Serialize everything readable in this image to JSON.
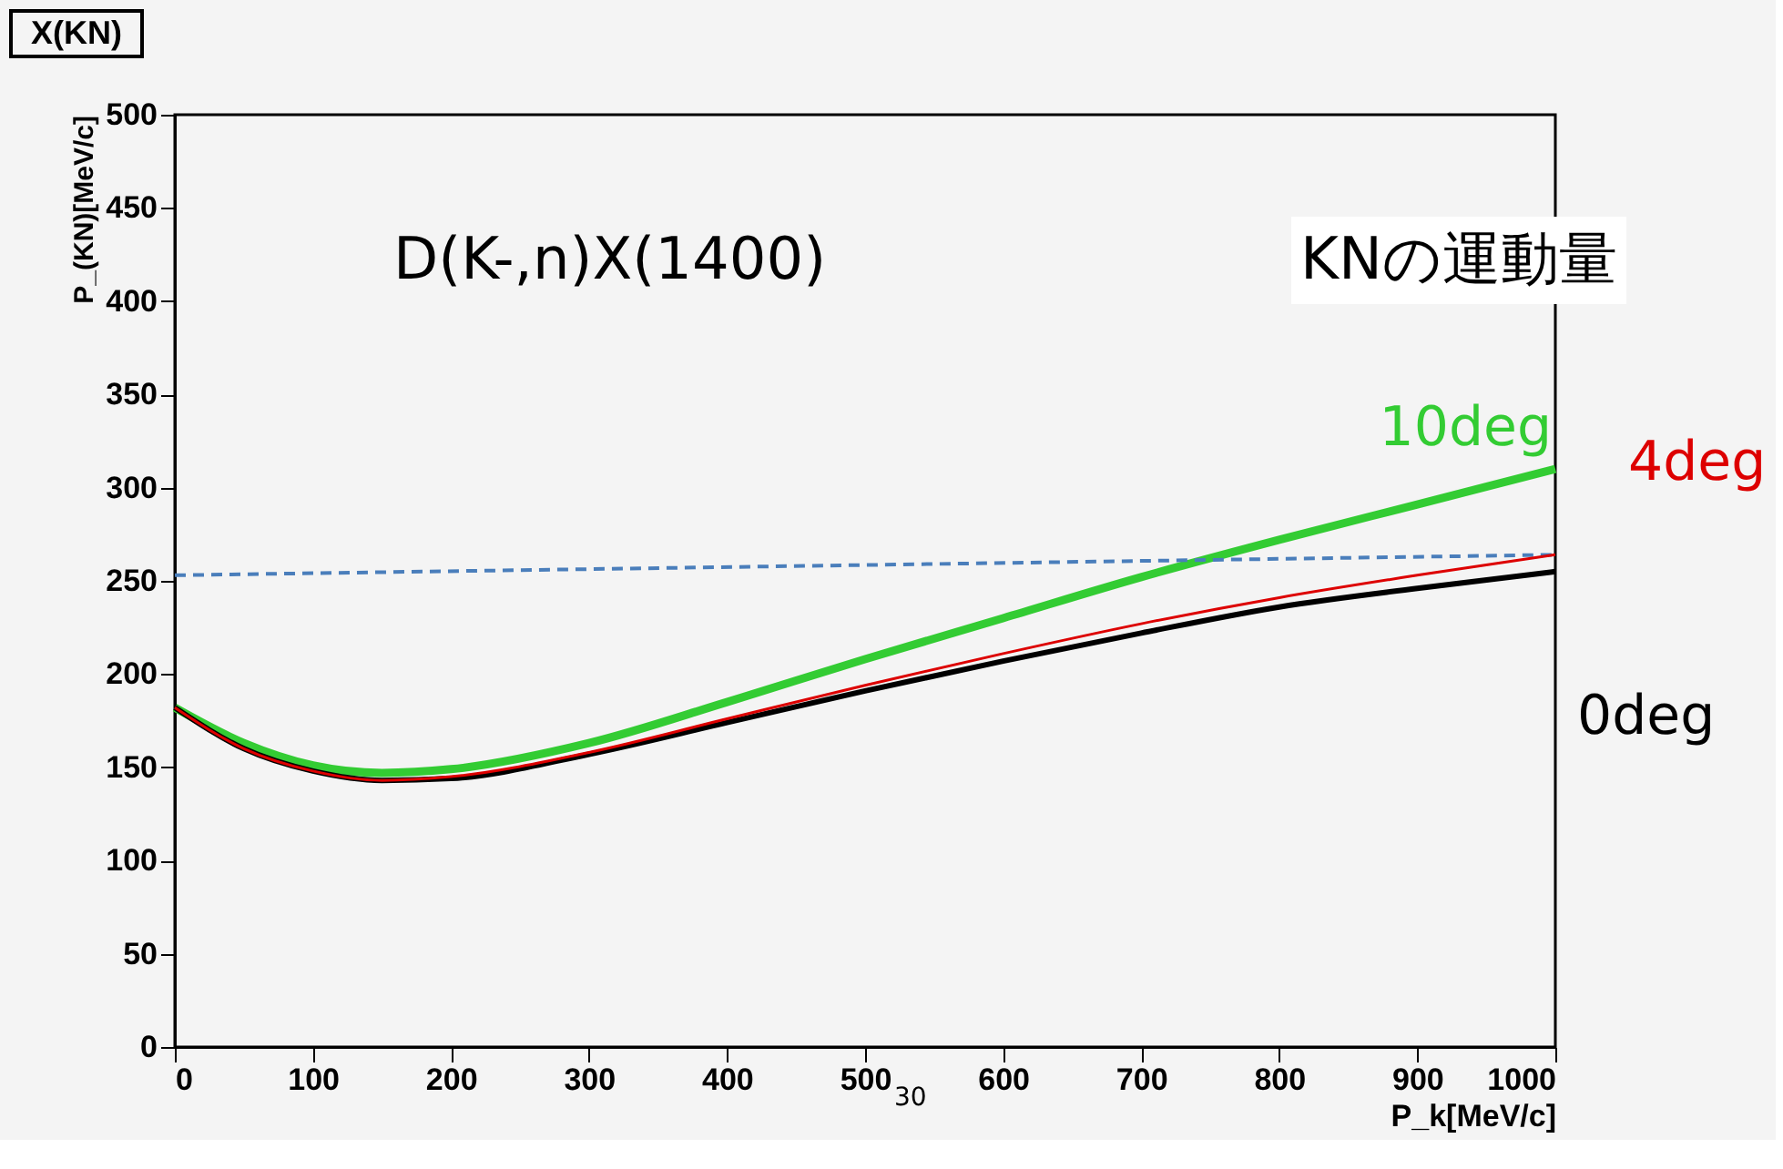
{
  "chart_data": {
    "type": "line",
    "title": "X(KN)",
    "xlabel": "P_k[MeV/c]",
    "ylabel": "P_(KN)[MeV/c]",
    "x": [
      0,
      50,
      100,
      150,
      200,
      300,
      400,
      500,
      600,
      700,
      800,
      900,
      1000
    ],
    "series": [
      {
        "name": "10deg",
        "color": "#33cc33",
        "values": [
          182,
          163,
          151,
          147,
          149,
          163,
          185,
          208,
          230,
          252,
          272,
          291,
          310
        ]
      },
      {
        "name": "4deg",
        "color": "#dd0000",
        "values": [
          182,
          160,
          148,
          143,
          145,
          158,
          176,
          194,
          211,
          227,
          241,
          253,
          264
        ]
      },
      {
        "name": "0deg",
        "color": "#000000",
        "values": [
          182,
          160,
          148,
          143,
          144,
          157,
          174,
          191,
          207,
          222,
          236,
          246,
          255
        ]
      },
      {
        "color": "#4a7ebb",
        "x": [
          0,
          1000
        ],
        "values": [
          253,
          264
        ],
        "line_style": "dashed"
      }
    ],
    "xlim": [
      0,
      1000
    ],
    "ylim": [
      0,
      500
    ],
    "xticks": [
      0,
      100,
      200,
      300,
      400,
      500,
      600,
      700,
      800,
      900,
      1000
    ],
    "yticks": [
      0,
      50,
      100,
      150,
      200,
      250,
      300,
      350,
      400,
      450,
      500
    ],
    "grid": false,
    "marker": "none",
    "annotations": [
      "D(K-,n)X(1400)",
      "KNの運動量",
      "30"
    ]
  }
}
